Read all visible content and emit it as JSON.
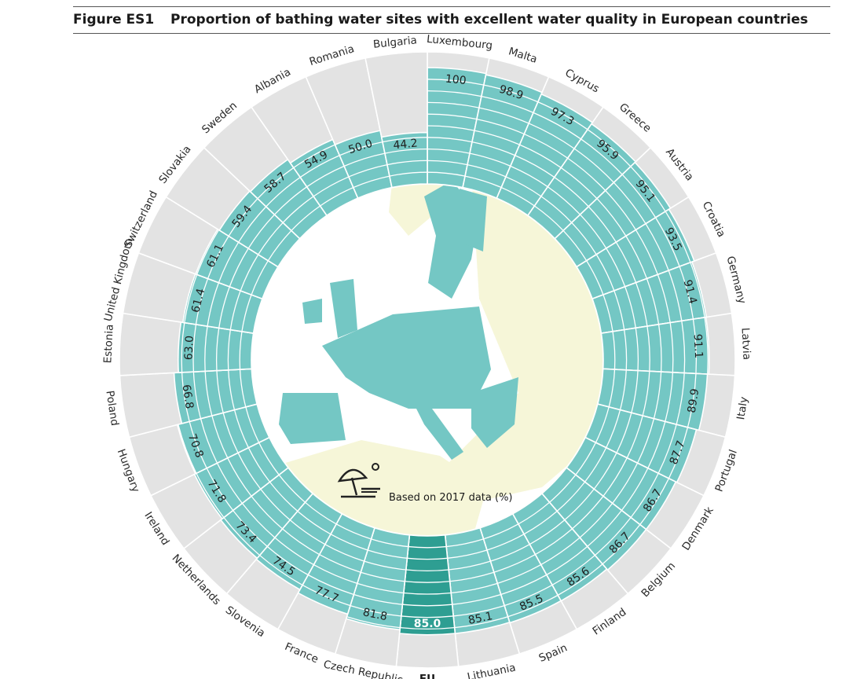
{
  "figure": {
    "label": "Figure ES1",
    "title": "Proportion of bathing water sites with excellent water quality in European countries"
  },
  "note": "Based on 2017 data (%)",
  "colors": {
    "bar": "#74c7c4",
    "bar_eu": "#2e9e92",
    "track": "#e3e3e3",
    "land_eu": "#74c7c4",
    "land_other": "#f6f6d8",
    "sea": "#ffffff"
  },
  "chart_data": {
    "type": "bar",
    "layout": "radial",
    "ylim": [
      0,
      100
    ],
    "categories": [
      "Luxembourg",
      "Malta",
      "Cyprus",
      "Greece",
      "Austria",
      "Croatia",
      "Germany",
      "Latvia",
      "Italy",
      "Portugal",
      "Denmark",
      "Belgium",
      "Finland",
      "Spain",
      "Lithuania",
      "EU",
      "Czech Republic",
      "France",
      "Slovenia",
      "Netherlands",
      "Ireland",
      "Hungary",
      "Poland",
      "Estonia",
      "United Kingdom",
      "Switzerland",
      "Slovakia",
      "Sweden",
      "Albania",
      "Romania",
      "Bulgaria"
    ],
    "values": [
      100,
      98.9,
      97.3,
      95.9,
      95.1,
      93.5,
      91.4,
      91.1,
      89.9,
      87.7,
      86.7,
      86.7,
      85.6,
      85.5,
      85.1,
      85.0,
      81.8,
      77.7,
      74.5,
      73.4,
      71.8,
      70.8,
      66.8,
      63.0,
      61.4,
      61.1,
      59.4,
      58.7,
      54.9,
      50.0,
      44.2
    ],
    "value_labels": [
      "100",
      "98.9",
      "97.3",
      "95.9",
      "95.1",
      "93.5",
      "91.4",
      "91.1",
      "89.9",
      "87.7",
      "86.7",
      "86.7",
      "85.6",
      "85.5",
      "85.1",
      "85.0",
      "81.8",
      "77.7",
      "74.5",
      "73.4",
      "71.8",
      "70.8",
      "66.8",
      "63.0",
      "61.4",
      "61.1",
      "59.4",
      "58.7",
      "54.9",
      "50.0",
      "44.2"
    ],
    "highlight": "EU"
  }
}
